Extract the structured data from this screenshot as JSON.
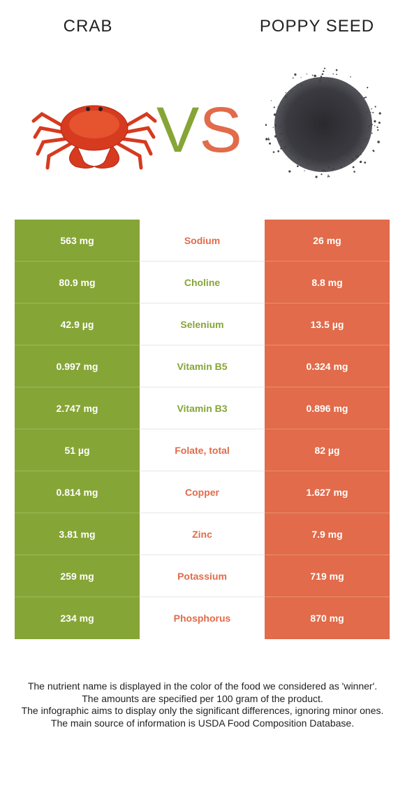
{
  "header": {
    "left_title": "CRAB",
    "right_title": "POPPY SEED",
    "vs_v": "V",
    "vs_s": "S"
  },
  "colors": {
    "winner_left": "#86a537",
    "winner_right": "#e16b4a"
  },
  "rows": [
    {
      "left": "563 mg",
      "nutrient": "Sodium",
      "right": "26 mg",
      "winner": "right"
    },
    {
      "left": "80.9 mg",
      "nutrient": "Choline",
      "right": "8.8 mg",
      "winner": "left"
    },
    {
      "left": "42.9 µg",
      "nutrient": "Selenium",
      "right": "13.5 µg",
      "winner": "left"
    },
    {
      "left": "0.997 mg",
      "nutrient": "Vitamin B5",
      "right": "0.324 mg",
      "winner": "left"
    },
    {
      "left": "2.747 mg",
      "nutrient": "Vitamin B3",
      "right": "0.896 mg",
      "winner": "left"
    },
    {
      "left": "51 µg",
      "nutrient": "Folate, total",
      "right": "82 µg",
      "winner": "right"
    },
    {
      "left": "0.814 mg",
      "nutrient": "Copper",
      "right": "1.627 mg",
      "winner": "right"
    },
    {
      "left": "3.81 mg",
      "nutrient": "Zinc",
      "right": "7.9 mg",
      "winner": "right"
    },
    {
      "left": "259 mg",
      "nutrient": "Potassium",
      "right": "719 mg",
      "winner": "right"
    },
    {
      "left": "234 mg",
      "nutrient": "Phosphorus",
      "right": "870 mg",
      "winner": "right"
    }
  ],
  "footer": {
    "line1": "The nutrient name is displayed in the color of the food we considered as 'winner'.",
    "line2": "The amounts are specified per 100 gram of the product.",
    "line3": "The infographic aims to display only the significant differences, ignoring minor ones.",
    "line4": "The main source of information is USDA Food Composition Database."
  }
}
